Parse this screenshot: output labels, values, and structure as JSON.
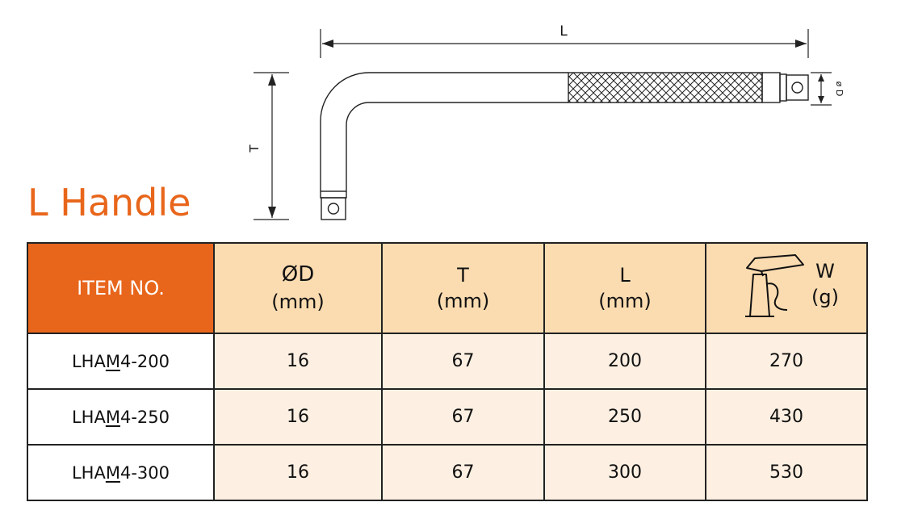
{
  "page": {
    "title": "L Handle"
  },
  "drawing": {
    "labels": {
      "length": "L",
      "height": "T",
      "diameter": "ø D"
    }
  },
  "table": {
    "headers": {
      "item": "ITEM NO.",
      "diameter": {
        "name": "ØD",
        "unit": "(mm)"
      },
      "t": {
        "name": "T",
        "unit": "(mm)"
      },
      "l": {
        "name": "L",
        "unit": "(mm)"
      },
      "w": {
        "name": "W",
        "unit": "(g)",
        "icon": "weighing-scale-icon"
      }
    },
    "rows": [
      {
        "item_prefix": "LHA",
        "item_mid": "M",
        "item_suffix": "4-200",
        "diameter": "16",
        "t": "67",
        "l": "200",
        "w": "270"
      },
      {
        "item_prefix": "LHA",
        "item_mid": "M",
        "item_suffix": "4-250",
        "diameter": "16",
        "t": "67",
        "l": "250",
        "w": "430"
      },
      {
        "item_prefix": "LHA",
        "item_mid": "M",
        "item_suffix": "4-300",
        "diameter": "16",
        "t": "67",
        "l": "300",
        "w": "530"
      }
    ]
  },
  "colors": {
    "accent": "#e8661b",
    "header_fill": "#fbdcb1",
    "cell_fill": "#fdf0e2"
  }
}
